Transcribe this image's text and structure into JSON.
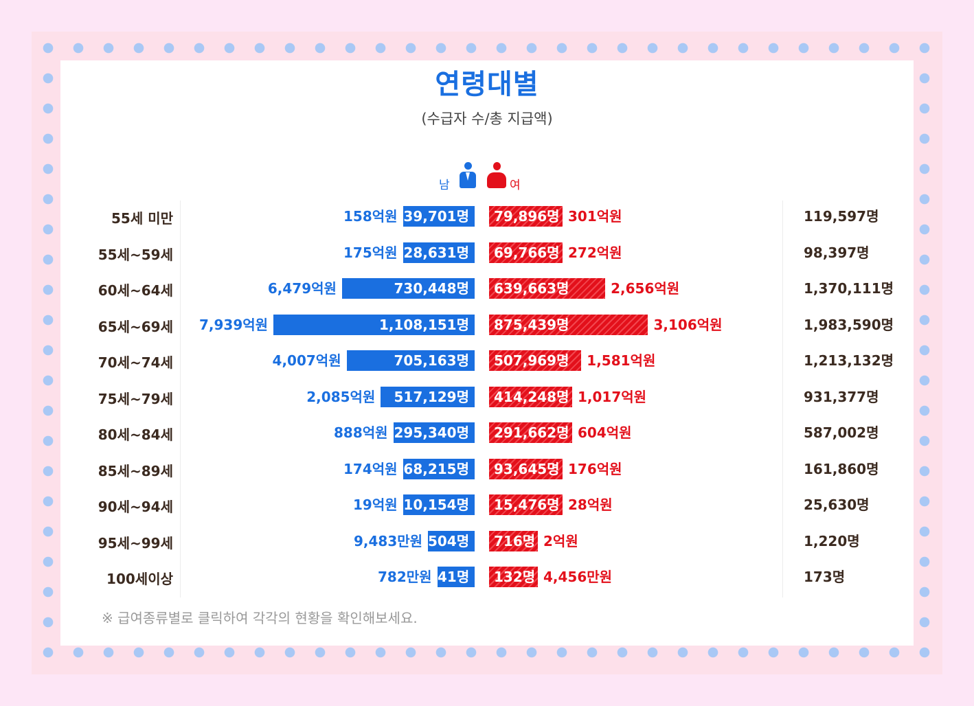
{
  "title": "연령대별",
  "subtitle": "(수급자 수/총 지급액)",
  "legend": {
    "male": "남",
    "female": "여"
  },
  "colors": {
    "male": "#1a6fe0",
    "female": "#e3101b"
  },
  "note": "※ 급여종류별로 클릭하여 각각의 현황을 확인해보세요.",
  "chart_data": {
    "type": "bar",
    "orientation": "horizontal-diverging",
    "categories": [
      "55세 미만",
      "55세~59세",
      "60세~64세",
      "65세~69세",
      "70세~74세",
      "75세~79세",
      "80세~84세",
      "85세~89세",
      "90세~94세",
      "95세~99세",
      "100세이상"
    ],
    "series": [
      {
        "name": "남",
        "values": [
          39701,
          28631,
          730448,
          1108151,
          705163,
          517129,
          295340,
          68215,
          10154,
          504,
          41
        ],
        "labels": [
          "39,701명",
          "28,631명",
          "730,448명",
          "1,108,151명",
          "705,163명",
          "517,129명",
          "295,340명",
          "68,215명",
          "10,154명",
          "504명",
          "41명"
        ],
        "amounts": [
          "158억원",
          "175억원",
          "6,479억원",
          "7,939억원",
          "4,007억원",
          "2,085억원",
          "888억원",
          "174억원",
          "19억원",
          "9,483만원",
          "782만원"
        ]
      },
      {
        "name": "여",
        "values": [
          79896,
          69766,
          639663,
          875439,
          507969,
          414248,
          291662,
          93645,
          15476,
          716,
          132
        ],
        "labels": [
          "79,896명",
          "69,766명",
          "639,663명",
          "875,439명",
          "507,969명",
          "414,248명",
          "291,662명",
          "93,645명",
          "15,476명",
          "716명",
          "132명"
        ],
        "amounts": [
          "301억원",
          "272억원",
          "2,656억원",
          "3,106억원",
          "1,581억원",
          "1,017억원",
          "604억원",
          "176억원",
          "28억원",
          "2억원",
          "4,456만원"
        ]
      }
    ],
    "totals": [
      "119,597명",
      "98,397명",
      "1,370,111명",
      "1,983,590명",
      "1,213,132명",
      "931,377명",
      "587,002명",
      "161,860명",
      "25,630명",
      "1,220명",
      "173명"
    ]
  }
}
